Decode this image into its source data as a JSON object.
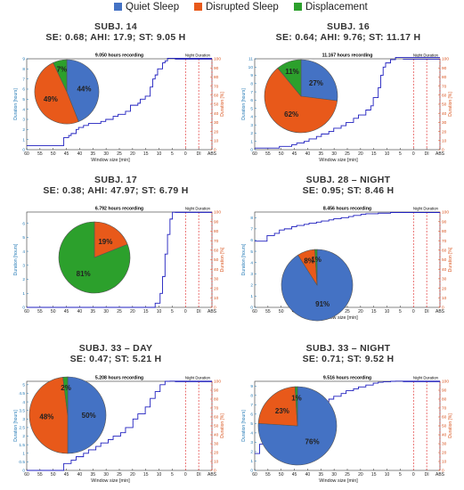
{
  "legend": {
    "items": [
      {
        "label": "Quiet Sleep",
        "color": "#4472c4"
      },
      {
        "label": "Disrupted Sleep",
        "color": "#e8591a"
      },
      {
        "label": "Displacement",
        "color": "#2ca02c"
      }
    ]
  },
  "colors": {
    "line": "#1f1fbf",
    "duration_axis": "#1f77b4",
    "percent_axis": "#d9541e",
    "dashed": "#e03030"
  },
  "chart_data": [
    {
      "type": "line",
      "subject_title": "SUBJ. 14",
      "stats": "SE: 0.68; AHI: 17.9; ST: 9.05 H",
      "title": "9.050 hours recording",
      "note": "Night Duration",
      "xlabel": "Window size [min]",
      "ylabel": "Duration [hours]",
      "ylabel_right": "Duration [%]",
      "xticks": [
        "60",
        "55",
        "50",
        "45",
        "40",
        "35",
        "30",
        "25",
        "20",
        "15",
        "10",
        "5",
        "0",
        "DI",
        "ABS"
      ],
      "xlim": [
        60,
        -15
      ],
      "ylim": [
        0,
        9
      ],
      "yticks": [
        "0",
        "1",
        "2",
        "3",
        "4",
        "5",
        "6",
        "7",
        "8",
        "9"
      ],
      "yticks_right": [
        "0",
        "10",
        "20",
        "30",
        "40",
        "50",
        "60",
        "70",
        "80",
        "90",
        "100"
      ],
      "series": [
        {
          "x": [
            60,
            45,
            45,
            43,
            42,
            40,
            39,
            37,
            35,
            33,
            30,
            28,
            25,
            23,
            20,
            18,
            15,
            14,
            12,
            10,
            9,
            8,
            7,
            5,
            4,
            3,
            0,
            -15
          ],
          "y": [
            0.4,
            0.4,
            1.2,
            1.4,
            1.6,
            2.0,
            2.2,
            2.4,
            2.6,
            2.6,
            2.8,
            3.0,
            3.3,
            3.5,
            3.8,
            4.4,
            4.6,
            5.0,
            5.3,
            6.2,
            7.0,
            7.4,
            8.0,
            8.6,
            8.8,
            9.05,
            9.05,
            9.05
          ]
        }
      ],
      "pie": {
        "slices": [
          {
            "label": "Quiet Sleep",
            "value": 44,
            "text": "44%"
          },
          {
            "label": "Disrupted Sleep",
            "value": 49,
            "text": "49%"
          },
          {
            "label": "Displacement",
            "value": 7,
            "text": "7%"
          }
        ]
      }
    },
    {
      "type": "line",
      "subject_title": "SUBJ. 16",
      "stats": "SE: 0.64; AHI: 9.76; ST: 11.17 H",
      "title": "11.167 hours recording",
      "note": "Night Duration",
      "xlabel": "Window size [min]",
      "ylabel": "Duration [hours]",
      "ylabel_right": "Duration [%]",
      "xticks": [
        "60",
        "55",
        "50",
        "45",
        "40",
        "35",
        "30",
        "25",
        "20",
        "15",
        "10",
        "5",
        "0",
        "DI",
        "ABS"
      ],
      "xlim": [
        60,
        -15
      ],
      "ylim": [
        0,
        11
      ],
      "yticks": [
        "0",
        "1",
        "2",
        "3",
        "4",
        "5",
        "6",
        "7",
        "8",
        "9",
        "10",
        "11"
      ],
      "yticks_right": [
        "0",
        "10",
        "20",
        "30",
        "40",
        "50",
        "60",
        "70",
        "80",
        "90",
        "100"
      ],
      "series": [
        {
          "x": [
            60,
            50,
            50,
            45,
            43,
            40,
            38,
            35,
            33,
            30,
            28,
            25,
            23,
            20,
            18,
            15,
            13,
            12,
            10,
            9,
            8,
            7,
            5,
            3,
            0,
            -15
          ],
          "y": [
            0.2,
            0.2,
            0.4,
            0.6,
            0.8,
            1.0,
            1.3,
            1.6,
            1.9,
            2.2,
            2.6,
            2.9,
            3.3,
            3.8,
            4.2,
            4.8,
            5.3,
            6.3,
            7.5,
            9.0,
            10.0,
            10.5,
            10.9,
            11.17,
            11.17,
            11.17
          ]
        }
      ],
      "pie": {
        "slices": [
          {
            "label": "Quiet Sleep",
            "value": 27,
            "text": "27%"
          },
          {
            "label": "Disrupted Sleep",
            "value": 62,
            "text": "62%"
          },
          {
            "label": "Displacement",
            "value": 11,
            "text": "11%"
          }
        ]
      }
    },
    {
      "type": "line",
      "subject_title": "SUBJ. 17",
      "stats": "SE: 0.38; AHI: 47.97; ST: 6.79 H",
      "title": "6.792 hours recording",
      "note": "Night Duration",
      "xlabel": "",
      "ylabel": "Duration [hours]",
      "ylabel_right": "Duration [%]",
      "xticks": [
        "60",
        "55",
        "50",
        "45",
        "40",
        "35",
        "30",
        "25",
        "20",
        "15",
        "10",
        "5",
        "0",
        "DI",
        "ABS"
      ],
      "xlim": [
        60,
        -15
      ],
      "ylim": [
        0,
        6.8
      ],
      "yticks": [
        "0",
        "1",
        "2",
        "3",
        "4",
        "5",
        "6"
      ],
      "yticks_right": [
        "0",
        "10",
        "20",
        "30",
        "40",
        "50",
        "60",
        "70",
        "80",
        "90",
        "100"
      ],
      "series": [
        {
          "x": [
            60,
            10,
            8,
            6,
            5,
            4,
            3,
            2,
            1,
            0,
            -15
          ],
          "y": [
            0,
            0,
            0.3,
            1.0,
            2.2,
            3.8,
            5.2,
            6.3,
            6.79,
            6.79,
            6.79
          ]
        }
      ],
      "pie": {
        "slices": [
          {
            "label": "Quiet Sleep",
            "value": 0,
            "text": ""
          },
          {
            "label": "Disrupted Sleep",
            "value": 19,
            "text": "19%"
          },
          {
            "label": "Displacement",
            "value": 81,
            "text": "81%"
          }
        ]
      }
    },
    {
      "type": "line",
      "subject_title": "SUBJ. 28 – NIGHT",
      "stats": "SE: 0.95; ST: 8.46 H",
      "title": "8.456 hours recording",
      "note": "Night Duration",
      "xlabel": "Window size [min]",
      "ylabel": "Duration [hours]",
      "ylabel_right": "Duration [%]",
      "xticks": [
        "60",
        "55",
        "50",
        "45",
        "40",
        "35",
        "30",
        "25",
        "20",
        "15",
        "10",
        "5",
        "0",
        "DI",
        "ABS"
      ],
      "xlim": [
        60,
        -15
      ],
      "ylim": [
        0,
        8.5
      ],
      "yticks": [
        "0",
        "1",
        "2",
        "3",
        "4",
        "5",
        "6",
        "7",
        "8"
      ],
      "yticks_right": [
        "0",
        "10",
        "20",
        "30",
        "40",
        "50",
        "60",
        "70",
        "80",
        "90",
        "100"
      ],
      "series": [
        {
          "x": [
            60,
            55,
            55,
            52,
            50,
            48,
            45,
            43,
            40,
            38,
            35,
            33,
            30,
            28,
            25,
            22,
            20,
            17,
            15,
            10,
            5,
            0,
            -15
          ],
          "y": [
            5.9,
            5.9,
            6.4,
            6.6,
            6.9,
            7.0,
            7.2,
            7.3,
            7.4,
            7.5,
            7.6,
            7.7,
            7.8,
            7.9,
            8.0,
            8.1,
            8.2,
            8.3,
            8.35,
            8.4,
            8.46,
            8.46,
            8.46
          ]
        }
      ],
      "pie": {
        "slices": [
          {
            "label": "Quiet Sleep",
            "value": 91,
            "text": "91%"
          },
          {
            "label": "Disrupted Sleep",
            "value": 8,
            "text": "8%"
          },
          {
            "label": "Displacement",
            "value": 1,
            "text": "1%"
          }
        ]
      }
    },
    {
      "type": "line",
      "subject_title": "SUBJ. 33 – DAY",
      "stats": "SE: 0.47; ST: 5.21 H",
      "title": "5.208 hours recording",
      "note": "Night Duration",
      "xlabel": "Window size [min]",
      "ylabel": "Duration [hours]",
      "ylabel_right": "Duration [%]",
      "xticks": [
        "60",
        "55",
        "50",
        "45",
        "40",
        "35",
        "30",
        "25",
        "20",
        "15",
        "10",
        "5",
        "0",
        "DI",
        "ABS"
      ],
      "xlim": [
        60,
        -15
      ],
      "ylim": [
        0,
        5.2
      ],
      "yticks": [
        "0",
        "0.5",
        "1",
        "1.5",
        "2",
        "2.5",
        "3",
        "3.5",
        "4",
        "4.5",
        "5"
      ],
      "yticks_right": [
        "0",
        "10",
        "20",
        "30",
        "40",
        "50",
        "60",
        "70",
        "80",
        "90",
        "100"
      ],
      "series": [
        {
          "x": [
            60,
            45,
            45,
            42,
            40,
            37,
            35,
            32,
            30,
            27,
            25,
            22,
            20,
            17,
            15,
            12,
            10,
            8,
            6,
            4,
            2,
            0,
            -15
          ],
          "y": [
            0,
            0,
            0.4,
            0.6,
            0.8,
            1.0,
            1.2,
            1.4,
            1.6,
            1.8,
            2.0,
            2.2,
            2.5,
            3.0,
            3.3,
            3.7,
            4.2,
            4.6,
            5.0,
            5.2,
            5.21,
            5.21,
            5.21
          ]
        }
      ],
      "pie": {
        "slices": [
          {
            "label": "Quiet Sleep",
            "value": 50,
            "text": "50%"
          },
          {
            "label": "Disrupted Sleep",
            "value": 48,
            "text": "48%"
          },
          {
            "label": "Displacement",
            "value": 2,
            "text": "2%"
          }
        ]
      }
    },
    {
      "type": "line",
      "subject_title": "SUBJ. 33 – NIGHT",
      "stats": "SE: 0.71; ST: 9.52 H",
      "title": "9.516 hours recording",
      "note": "Night Duration",
      "xlabel": "Window size [min]",
      "ylabel": "Duration [hours]",
      "ylabel_right": "Duration [%]",
      "xticks": [
        "60",
        "55",
        "50",
        "45",
        "40",
        "35",
        "30",
        "25",
        "20",
        "15",
        "10",
        "5",
        "0",
        "DI",
        "ABS"
      ],
      "xlim": [
        60,
        -15
      ],
      "ylim": [
        0,
        9.5
      ],
      "yticks": [
        "0",
        "1",
        "2",
        "3",
        "4",
        "5",
        "6",
        "7",
        "8",
        "9"
      ],
      "yticks_right": [
        "0",
        "10",
        "20",
        "30",
        "40",
        "50",
        "60",
        "70",
        "80",
        "90",
        "100"
      ],
      "series": [
        {
          "x": [
            60,
            58,
            58,
            55,
            52,
            50,
            48,
            45,
            43,
            40,
            38,
            35,
            33,
            30,
            28,
            25,
            23,
            20,
            18,
            15,
            12,
            10,
            8,
            5,
            3,
            0,
            -15
          ],
          "y": [
            1.8,
            1.8,
            2.8,
            3.6,
            4.2,
            4.8,
            5.2,
            5.6,
            6.0,
            6.4,
            6.7,
            7.0,
            7.3,
            7.6,
            7.9,
            8.2,
            8.5,
            8.7,
            8.9,
            9.1,
            9.3,
            9.4,
            9.45,
            9.5,
            9.52,
            9.52,
            9.52
          ]
        }
      ],
      "pie": {
        "slices": [
          {
            "label": "Quiet Sleep",
            "value": 76,
            "text": "76%"
          },
          {
            "label": "Disrupted Sleep",
            "value": 23,
            "text": "23%"
          },
          {
            "label": "Displacement",
            "value": 1,
            "text": "1%"
          }
        ]
      }
    }
  ]
}
